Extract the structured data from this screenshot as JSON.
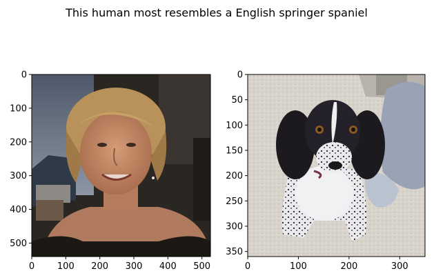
{
  "figure": {
    "suptitle": "This human most resembles a English springer spaniel"
  },
  "panels": [
    {
      "name": "human",
      "subject": "woman with short blonde hair, dark top, outdoor evening background",
      "image_extent": {
        "width": 525,
        "height": 540
      },
      "xticks": [
        0,
        100,
        200,
        300,
        400,
        500
      ],
      "yticks": [
        0,
        100,
        200,
        300,
        400,
        500
      ]
    },
    {
      "name": "dog",
      "subject": "black and white English springer spaniel sitting on a carpet",
      "image_extent": {
        "width": 350,
        "height": 360
      },
      "xticks": [
        0,
        100,
        200,
        300
      ],
      "yticks": [
        0,
        50,
        100,
        150,
        200,
        250,
        300,
        350
      ]
    }
  ],
  "colors": {
    "human_bg": "#2a2622",
    "human_sky": "#6e7c8f",
    "human_skin": "#c88e6a",
    "human_hair": "#b8925a",
    "dog_carpet": "#d8d4cc",
    "dog_black": "#1c1a1e",
    "dog_white": "#efeff0",
    "wall_blue": "#9aa3b5"
  }
}
